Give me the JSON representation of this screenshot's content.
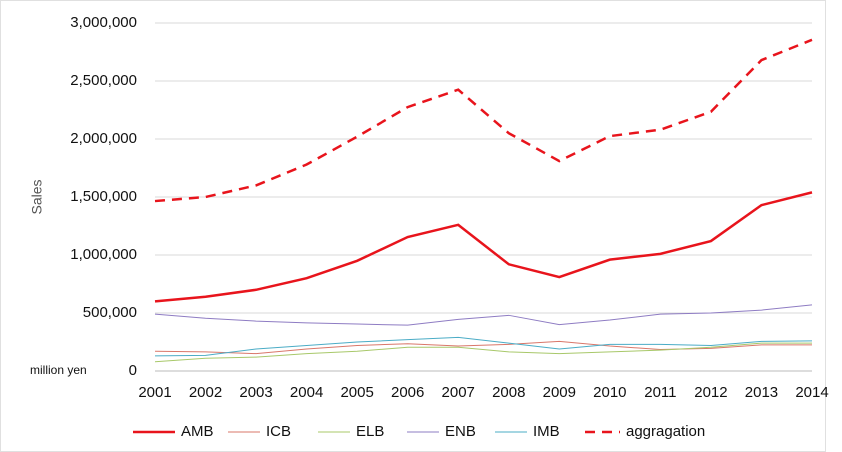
{
  "chart_data": {
    "type": "line",
    "y_label": "Sales",
    "unit_note": "million yen",
    "categories": [
      "2001",
      "2002",
      "2003",
      "2004",
      "2005",
      "2006",
      "2007",
      "2008",
      "2009",
      "2010",
      "2011",
      "2012",
      "2013",
      "2014"
    ],
    "series": [
      {
        "name": "AMB",
        "color": "#e8141c",
        "line_width": 2.5,
        "dashed": false,
        "values": [
          600000,
          640000,
          700000,
          800000,
          950000,
          1155000,
          1260000,
          920000,
          810000,
          960000,
          1010000,
          1120000,
          1430000,
          1540000
        ]
      },
      {
        "name": "ICB",
        "color": "#d9776a",
        "line_width": 1,
        "dashed": false,
        "values": [
          170000,
          165000,
          150000,
          190000,
          220000,
          235000,
          215000,
          230000,
          255000,
          215000,
          185000,
          195000,
          225000,
          225000
        ]
      },
      {
        "name": "ELB",
        "color": "#a8c86a",
        "line_width": 1,
        "dashed": false,
        "values": [
          80000,
          110000,
          120000,
          150000,
          170000,
          205000,
          205000,
          165000,
          150000,
          165000,
          180000,
          205000,
          240000,
          240000
        ]
      },
      {
        "name": "ENB",
        "color": "#8e7cc3",
        "line_width": 1,
        "dashed": false,
        "values": [
          490000,
          455000,
          430000,
          415000,
          405000,
          395000,
          445000,
          480000,
          400000,
          440000,
          490000,
          500000,
          525000,
          570000
        ]
      },
      {
        "name": "IMB",
        "color": "#4bacc6",
        "line_width": 1,
        "dashed": false,
        "values": [
          130000,
          135000,
          190000,
          220000,
          250000,
          270000,
          290000,
          240000,
          190000,
          230000,
          230000,
          220000,
          255000,
          260000
        ]
      },
      {
        "name": "aggragation",
        "color": "#e8141c",
        "line_width": 2.5,
        "dashed": true,
        "values": [
          1465000,
          1500000,
          1600000,
          1780000,
          2020000,
          2275000,
          2425000,
          2050000,
          1810000,
          2025000,
          2080000,
          2235000,
          2680000,
          2855000
        ]
      }
    ],
    "ylim": [
      0,
      3000000
    ],
    "yticks": [
      0,
      {
        "value": 500000,
        "label": "500,000"
      },
      {
        "value": 1000000,
        "label": "1,000,000"
      },
      {
        "value": 1500000,
        "label": "1,500,000"
      },
      {
        "value": 2000000,
        "label": "2,000,000"
      },
      {
        "value": 2500000,
        "label": "2,500,000"
      },
      {
        "value": 3000000,
        "label": "3,000,000"
      }
    ],
    "grid": true,
    "legend": "bottom"
  }
}
